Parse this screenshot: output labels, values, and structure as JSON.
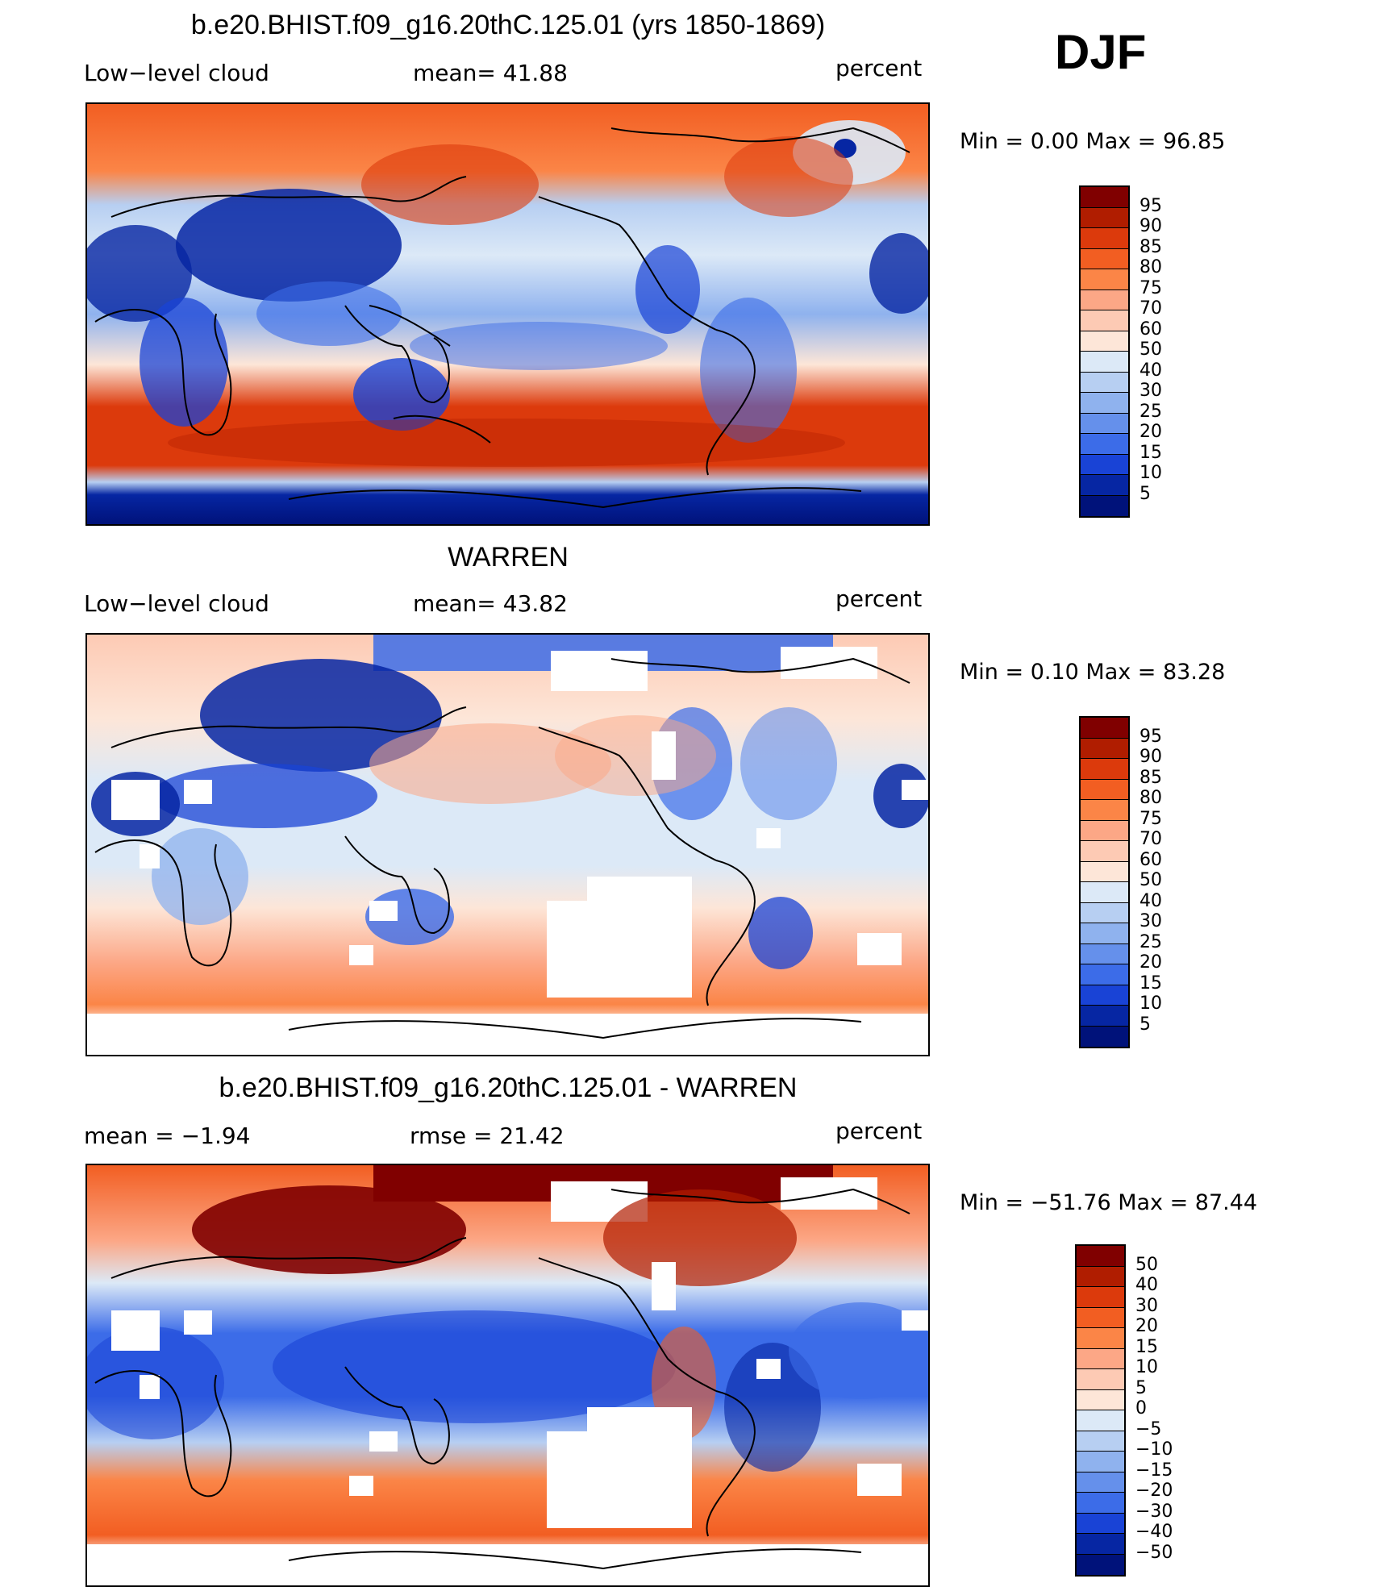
{
  "season": "DJF",
  "panels": [
    {
      "id": "model",
      "title": "b.e20.BHIST.f09_g16.20thC.125.01 (yrs 1850-1869)",
      "left_label": "Low−level cloud",
      "center_label": "mean=   41.88",
      "right_label": "percent",
      "minmax": "Min  =     0.00  Max  =    96.85",
      "colorbar_labels": [
        "95",
        "90",
        "85",
        "80",
        "75",
        "70",
        "60",
        "50",
        "40",
        "30",
        "25",
        "20",
        "15",
        "10",
        "5"
      ],
      "colorbar_colors": [
        "#800000",
        "#b01d00",
        "#dc3a0c",
        "#f25e22",
        "#fb8547",
        "#fca786",
        "#fdcab4",
        "#fde6d8",
        "#dce9f7",
        "#b7cff2",
        "#8fb2ee",
        "#6590eb",
        "#3c6ce8",
        "#1943d6",
        "#0626a3",
        "#00127a"
      ]
    },
    {
      "id": "obs",
      "title": "WARREN",
      "left_label": "Low−level cloud",
      "center_label": "mean=   43.82",
      "right_label": "percent",
      "minmax": "Min  =     0.10  Max  =    83.28",
      "colorbar_labels": [
        "95",
        "90",
        "85",
        "80",
        "75",
        "70",
        "60",
        "50",
        "40",
        "30",
        "25",
        "20",
        "15",
        "10",
        "5"
      ],
      "colorbar_colors": [
        "#800000",
        "#b01d00",
        "#dc3a0c",
        "#f25e22",
        "#fb8547",
        "#fca786",
        "#fdcab4",
        "#fde6d8",
        "#dce9f7",
        "#b7cff2",
        "#8fb2ee",
        "#6590eb",
        "#3c6ce8",
        "#1943d6",
        "#0626a3",
        "#00127a"
      ]
    },
    {
      "id": "diff",
      "title": "b.e20.BHIST.f09_g16.20thC.125.01 - WARREN",
      "left_label": "mean  =     −1.94",
      "center_label": "rmse  =     21.42",
      "right_label": "percent",
      "minmax": "Min  = −51.76  Max  =    87.44",
      "colorbar_labels": [
        "50",
        "40",
        "30",
        "20",
        "15",
        "10",
        "5",
        "0",
        "−5",
        "−10",
        "−15",
        "−20",
        "−30",
        "−40",
        "−50"
      ],
      "colorbar_colors": [
        "#800000",
        "#b01d00",
        "#dc3a0c",
        "#f25e22",
        "#fb8547",
        "#fca786",
        "#fdcab4",
        "#fde6d8",
        "#dce9f7",
        "#b7cff2",
        "#8fb2ee",
        "#6590eb",
        "#3c6ce8",
        "#1943d6",
        "#0626a3",
        "#00127a"
      ]
    }
  ]
}
